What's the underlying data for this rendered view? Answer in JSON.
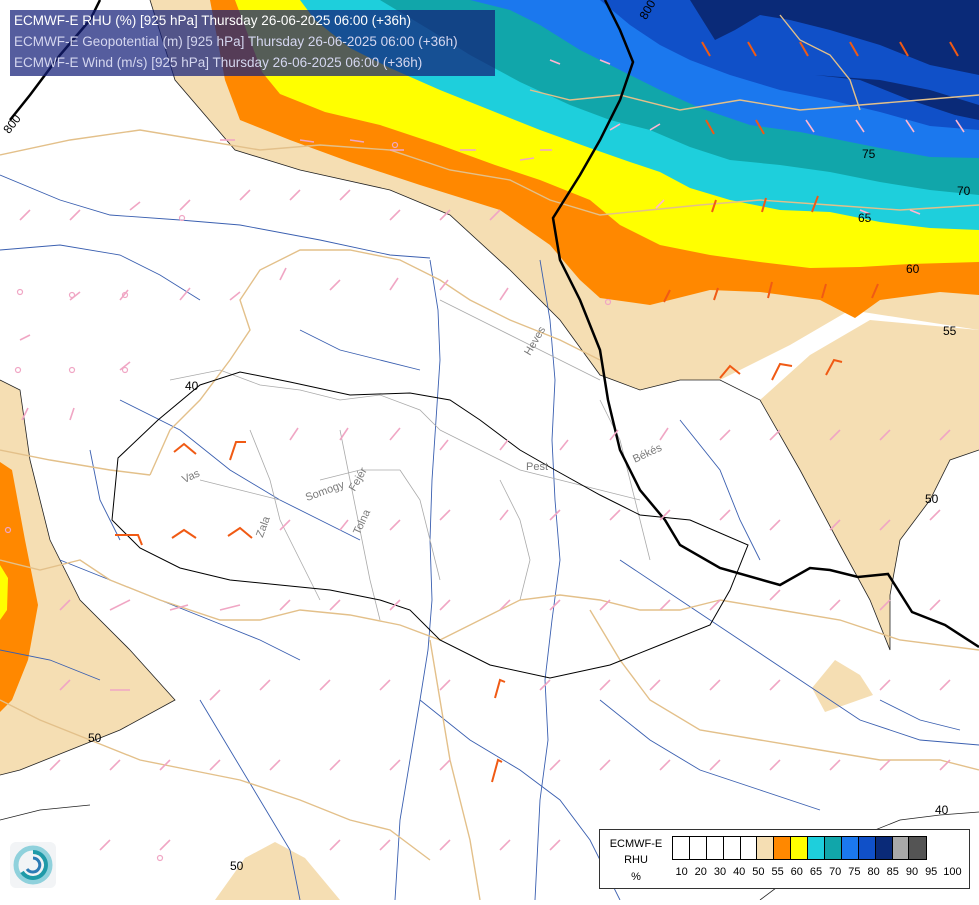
{
  "title": {
    "line1": "ECMWF-E RHU (%) [925 hPa] Thursday 26-06-2025 06:00 (+36h)",
    "line2": "ECMWF-E Geopotential (m) [925 hPa] Thursday 26-06-2025 06:00 (+36h)",
    "line3": "ECMWF-E Wind (m/s) [925 hPa] Thursday 26-06-2025 06:00 (+36h)"
  },
  "legend": {
    "model": "ECMWF-E",
    "variable": "RHU",
    "unit": "%",
    "ticks": [
      "10",
      "20",
      "30",
      "40",
      "50",
      "55",
      "60",
      "65",
      "70",
      "75",
      "80",
      "85",
      "90",
      "95",
      "100"
    ],
    "colors": [
      "#ffffff",
      "#ffffff",
      "#ffffff",
      "#ffffff",
      "#ffffff",
      "#f5deb3",
      "#ff8800",
      "#ffff00",
      "#1ecfdc",
      "#11a6aa",
      "#1b78ee",
      "#1050c8",
      "#0a2a78",
      "#a9a9a9",
      "#545454"
    ]
  },
  "contours": {
    "rhu_labels": [
      "75",
      "70",
      "65",
      "60",
      "55",
      "50",
      "50",
      "50",
      "40",
      "40"
    ],
    "geopotential_labels": [
      "800",
      "800"
    ]
  },
  "places": [
    "Heves",
    "Pest",
    "Békés",
    "Vas",
    "Somogy",
    "Fejér",
    "Zala",
    "Tolna"
  ],
  "colors": {
    "border": "#e3c08a",
    "river": "#3a5fb0",
    "admin": "#aaaaaa",
    "wind_weak": "#f0a6c4",
    "wind_strong": "#f05a14",
    "wind_on_blue": "#ffb6d0",
    "geopotential": "#000000"
  }
}
